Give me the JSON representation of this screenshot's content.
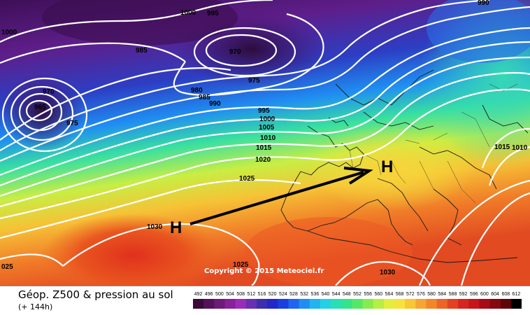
{
  "map": {
    "pressure_labels": [
      {
        "text": "1000",
        "id": "a"
      },
      {
        "text": "995",
        "id": "b"
      },
      {
        "text": "990",
        "id": "c"
      },
      {
        "text": "1000",
        "id": "d"
      },
      {
        "text": "985",
        "id": "e"
      },
      {
        "text": "970",
        "id": "f"
      },
      {
        "text": "970",
        "id": "g"
      },
      {
        "text": "975",
        "id": "h"
      },
      {
        "text": "965",
        "id": "i"
      },
      {
        "text": "975",
        "id": "j"
      },
      {
        "text": "980",
        "id": "k"
      },
      {
        "text": "985",
        "id": "l"
      },
      {
        "text": "990",
        "id": "m"
      },
      {
        "text": "995",
        "id": "n"
      },
      {
        "text": "1000",
        "id": "o"
      },
      {
        "text": "1005",
        "id": "p"
      },
      {
        "text": "1010",
        "id": "q"
      },
      {
        "text": "1015",
        "id": "r"
      },
      {
        "text": "1020",
        "id": "s"
      },
      {
        "text": "1025",
        "id": "t"
      },
      {
        "text": "1030",
        "id": "u"
      },
      {
        "text": "1025",
        "id": "v"
      },
      {
        "text": "1030",
        "id": "w"
      },
      {
        "text": "025",
        "id": "x"
      },
      {
        "text": "1015",
        "id": "y"
      },
      {
        "text": "1010",
        "id": "z"
      }
    ],
    "high_markers": [
      "H",
      "H"
    ],
    "copyright": "Copyright © 2015 Meteociel.fr"
  },
  "footer": {
    "title": "Géop. Z500 & pression au sol",
    "forecast": "(+ 144h)"
  },
  "scale": {
    "values": [
      "492",
      "496",
      "500",
      "504",
      "508",
      "512",
      "516",
      "520",
      "524",
      "528",
      "532",
      "536",
      "540",
      "544",
      "548",
      "552",
      "556",
      "560",
      "564",
      "568",
      "572",
      "576",
      "580",
      "584",
      "588",
      "592",
      "596",
      "600",
      "604",
      "608",
      "612"
    ],
    "colors": [
      "#3b0a3a",
      "#55125a",
      "#6e1a78",
      "#88209a",
      "#9b2cb8",
      "#6a2fb0",
      "#3b2fb0",
      "#2228c8",
      "#1a3fe0",
      "#1e66f0",
      "#1f8ef2",
      "#20b4f0",
      "#22d2e2",
      "#27e0b4",
      "#34e48a",
      "#54e866",
      "#86ec4e",
      "#b6ee44",
      "#e2ee3e",
      "#f6e23a",
      "#f8c636",
      "#f6a630",
      "#f2862a",
      "#ec6426",
      "#e24222",
      "#d8241e",
      "#c8141c",
      "#a80c16",
      "#880810",
      "#60040a",
      "#000000"
    ]
  }
}
